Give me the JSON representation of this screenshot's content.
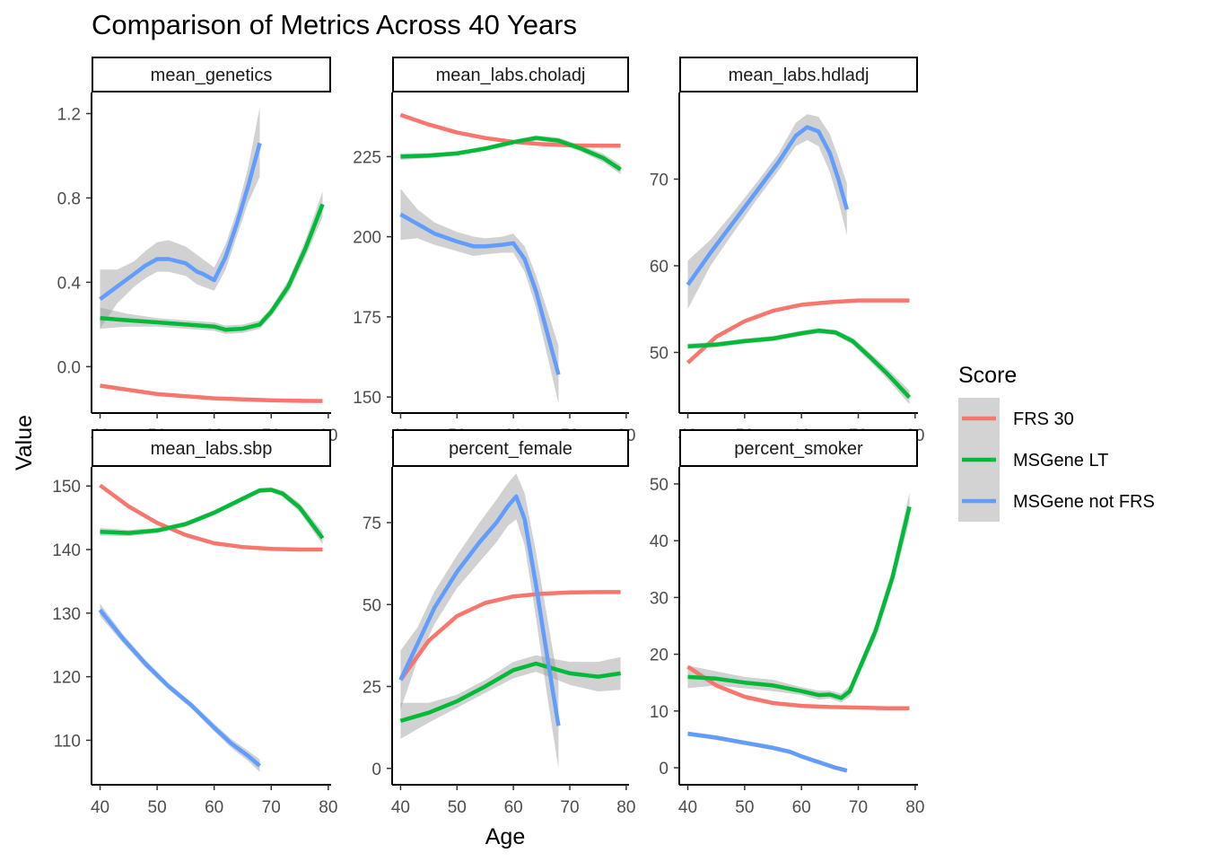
{
  "chart_data": {
    "type": "line",
    "title": "Comparison of Metrics Across 40 Years",
    "xlabel": "Age",
    "ylabel": "Value",
    "legend": {
      "title": "Score",
      "placement": "right",
      "entries": [
        {
          "name": "FRS 30",
          "color": "#F8766D"
        },
        {
          "name": "MSGene LT",
          "color": "#00BA38"
        },
        {
          "name": "MSGene not FRS",
          "color": "#619CFF"
        }
      ]
    },
    "xlim": [
      38.5,
      80.5
    ],
    "x_ticks": [
      40,
      50,
      60,
      70,
      80
    ],
    "grid": false,
    "panels": [
      {
        "strip": "mean_genetics",
        "ylim": [
          -0.22,
          1.3
        ],
        "y_ticks": [
          0.0,
          0.4,
          0.8,
          1.2
        ],
        "y_tick_labels": [
          "0.0",
          "0.4",
          "0.8",
          "1.2"
        ],
        "series": [
          {
            "name": "FRS 30",
            "x": [
              40,
              45,
              50,
              55,
              60,
              65,
              70,
              75,
              79
            ],
            "y": [
              -0.09,
              -0.11,
              -0.13,
              -0.14,
              -0.15,
              -0.155,
              -0.16,
              -0.162,
              -0.163
            ]
          },
          {
            "name": "MSGene LT",
            "x": [
              40,
              45,
              50,
              55,
              60,
              62,
              65,
              68,
              70,
              73,
              76,
              79
            ],
            "y": [
              0.23,
              0.22,
              0.21,
              0.2,
              0.19,
              0.175,
              0.18,
              0.2,
              0.26,
              0.38,
              0.56,
              0.77
            ],
            "lower": [
              0.18,
              0.19,
              0.19,
              0.18,
              0.17,
              0.155,
              0.16,
              0.18,
              0.24,
              0.35,
              0.52,
              0.71
            ],
            "upper": [
              0.28,
              0.25,
              0.23,
              0.22,
              0.21,
              0.195,
              0.2,
              0.22,
              0.28,
              0.41,
              0.6,
              0.83
            ]
          },
          {
            "name": "MSGene not FRS",
            "x": [
              40,
              43,
              46,
              48,
              50,
              52,
              55,
              57,
              58,
              60,
              62,
              64,
              66,
              68
            ],
            "y": [
              0.32,
              0.38,
              0.44,
              0.48,
              0.51,
              0.51,
              0.49,
              0.45,
              0.44,
              0.41,
              0.52,
              0.68,
              0.86,
              1.06
            ],
            "lower": [
              0.18,
              0.3,
              0.38,
              0.42,
              0.45,
              0.45,
              0.43,
              0.39,
              0.38,
              0.36,
              0.46,
              0.62,
              0.78,
              0.9
            ],
            "upper": [
              0.46,
              0.46,
              0.5,
              0.55,
              0.59,
              0.6,
              0.57,
              0.53,
              0.51,
              0.47,
              0.58,
              0.74,
              0.95,
              1.23
            ]
          }
        ]
      },
      {
        "strip": "mean_labs.choladj",
        "ylim": [
          145,
          245
        ],
        "y_ticks": [
          150,
          175,
          200,
          225
        ],
        "y_tick_labels": [
          "150",
          "175",
          "200",
          "225"
        ],
        "series": [
          {
            "name": "FRS 30",
            "x": [
              40,
              45,
              50,
              55,
              60,
              65,
              70,
              75,
              79
            ],
            "y": [
              238,
              235,
              232.5,
              230.8,
              229.6,
              228.9,
              228.5,
              228.4,
              228.4
            ]
          },
          {
            "name": "MSGene LT",
            "x": [
              40,
              45,
              50,
              55,
              60,
              64,
              68,
              72,
              76,
              79
            ],
            "y": [
              225,
              225.3,
              226,
              227.5,
              229.5,
              230.8,
              230.0,
              227.5,
              224.5,
              221
            ],
            "lower": [
              224,
              224.5,
              225.3,
              226.8,
              228.8,
              230.0,
              229.1,
              226.5,
              223.2,
              219.5
            ],
            "upper": [
              226,
              226.1,
              226.7,
              228.2,
              230.2,
              231.6,
              230.9,
              228.5,
              225.8,
              222.5
            ]
          },
          {
            "name": "MSGene not FRS",
            "x": [
              40,
              43,
              46,
              50,
              53,
              55,
              58,
              60,
              62,
              64,
              66,
              68
            ],
            "y": [
              207,
              204,
              201,
              198.5,
              197,
              197,
              197.5,
              198,
              193,
              183,
              170,
              157
            ],
            "lower": [
              199,
              199.5,
              197.5,
              195.5,
              194,
              194.5,
              195,
              195,
              189,
              178,
              163,
              148
            ],
            "upper": [
              215,
              208.5,
              204.5,
              201.5,
              200,
              199.5,
              200,
              201,
              197,
              188,
              177,
              166
            ]
          }
        ]
      },
      {
        "strip": "mean_labs.hdladj",
        "ylim": [
          43,
          80
        ],
        "y_ticks": [
          50,
          60,
          70
        ],
        "y_tick_labels": [
          "50",
          "60",
          "70"
        ],
        "series": [
          {
            "name": "FRS 30",
            "x": [
              40,
              45,
              50,
              55,
              60,
              65,
              70,
              75,
              79
            ],
            "y": [
              48.8,
              51.8,
              53.6,
              54.8,
              55.5,
              55.8,
              56.0,
              56.0,
              56.0
            ]
          },
          {
            "name": "MSGene LT",
            "x": [
              40,
              45,
              50,
              55,
              60,
              63,
              66,
              69,
              72,
              75,
              79
            ],
            "y": [
              50.7,
              50.9,
              51.3,
              51.6,
              52.2,
              52.5,
              52.3,
              51.3,
              49.5,
              47.6,
              44.8
            ],
            "lower": [
              50.4,
              50.6,
              51.0,
              51.3,
              51.9,
              52.2,
              52.0,
              50.9,
              49.0,
              47.0,
              44.0
            ],
            "upper": [
              51.0,
              51.2,
              51.6,
              51.9,
              52.5,
              52.8,
              52.6,
              51.7,
              50.0,
              48.2,
              45.6
            ]
          },
          {
            "name": "MSGene not FRS",
            "x": [
              40,
              44,
              48,
              52,
              56,
              59,
              61,
              63,
              65,
              66.5,
              68
            ],
            "y": [
              57.8,
              61.5,
              65.0,
              68.5,
              72.0,
              75.0,
              76.0,
              75.5,
              73.0,
              70.0,
              66.5
            ],
            "lower": [
              55.0,
              60.0,
              63.8,
              67.5,
              71.0,
              73.8,
              74.5,
              73.8,
              70.8,
              67.5,
              63.5
            ],
            "upper": [
              60.6,
              63.0,
              66.2,
              69.5,
              73.0,
              76.5,
              77.5,
              77.2,
              75.2,
              72.5,
              69.5
            ]
          }
        ]
      },
      {
        "strip": "mean_labs.sbp",
        "ylim": [
          103,
          153
        ],
        "y_ticks": [
          110,
          120,
          130,
          140,
          150
        ],
        "y_tick_labels": [
          "110",
          "120",
          "130",
          "140",
          "150"
        ],
        "series": [
          {
            "name": "FRS 30",
            "x": [
              40,
              45,
              50,
              55,
              60,
              65,
              70,
              75,
              79
            ],
            "y": [
              150.1,
              146.8,
              144.2,
              142.3,
              141.0,
              140.4,
              140.1,
              140.0,
              140.0
            ]
          },
          {
            "name": "MSGene LT",
            "x": [
              40,
              45,
              50,
              55,
              60,
              65,
              68,
              70,
              72,
              75,
              79
            ],
            "y": [
              142.8,
              142.6,
              143.0,
              144.0,
              145.8,
              148.0,
              149.3,
              149.4,
              148.8,
              146.6,
              141.8
            ],
            "lower": [
              142.2,
              142.1,
              142.6,
              143.6,
              145.4,
              147.6,
              148.9,
              149.0,
              148.3,
              145.9,
              140.8
            ],
            "upper": [
              143.4,
              143.1,
              143.4,
              144.4,
              146.2,
              148.4,
              149.7,
              149.8,
              149.3,
              147.3,
              142.8
            ]
          },
          {
            "name": "MSGene not FRS",
            "x": [
              40,
              44,
              48,
              52,
              56,
              60,
              63,
              66,
              68
            ],
            "y": [
              130.5,
              126.0,
              122.0,
              118.5,
              115.5,
              112.0,
              109.5,
              107.5,
              106.0
            ],
            "lower": [
              129.5,
              125.3,
              121.4,
              118.0,
              115.0,
              111.4,
              108.8,
              106.7,
              105.0
            ],
            "upper": [
              131.5,
              126.7,
              122.6,
              119.0,
              116.0,
              112.6,
              110.2,
              108.3,
              107.0
            ]
          }
        ]
      },
      {
        "strip": "percent_female",
        "ylim": [
          -5,
          92
        ],
        "y_ticks": [
          0,
          25,
          50,
          75
        ],
        "y_tick_labels": [
          "0",
          "25",
          "50",
          "75"
        ],
        "series": [
          {
            "name": "FRS 30",
            "x": [
              40,
              45,
              50,
              55,
              60,
              65,
              70,
              75,
              79
            ],
            "y": [
              27,
              39,
              46.5,
              50.5,
              52.5,
              53.3,
              53.7,
              53.8,
              53.8
            ]
          },
          {
            "name": "MSGene LT",
            "x": [
              40,
              45,
              50,
              55,
              60,
              64,
              67,
              70,
              75,
              79
            ],
            "y": [
              14.5,
              17.0,
              20.5,
              25.0,
              30.0,
              32.0,
              30.5,
              29.0,
              28.0,
              29.0
            ],
            "lower": [
              9.0,
              14.0,
              18.5,
              23.0,
              27.5,
              29.5,
              27.5,
              25.5,
              23.5,
              24.0
            ],
            "upper": [
              20.0,
              20.0,
              22.5,
              27.0,
              32.5,
              34.5,
              33.5,
              32.5,
              32.5,
              34.0
            ]
          },
          {
            "name": "MSGene not FRS",
            "x": [
              40,
              43,
              46,
              50,
              54,
              57,
              59,
              60.5,
              62,
              64,
              66,
              68
            ],
            "y": [
              27,
              38,
              49,
              60,
              69,
              75,
              80,
              83,
              76,
              56,
              34,
              13
            ],
            "lower": [
              18,
              33,
              44,
              55,
              63,
              69,
              74,
              76,
              68,
              46,
              22,
              0
            ],
            "upper": [
              36,
              43,
              54,
              65,
              75,
              82,
              87,
              90,
              84,
              66,
              46,
              26
            ]
          }
        ]
      },
      {
        "strip": "percent_smoker",
        "ylim": [
          -3,
          53
        ],
        "y_ticks": [
          0,
          10,
          20,
          30,
          40,
          50
        ],
        "y_tick_labels": [
          "0",
          "10",
          "20",
          "30",
          "40",
          "50"
        ],
        "series": [
          {
            "name": "FRS 30",
            "x": [
              40,
              45,
              50,
              55,
              60,
              65,
              70,
              75,
              79
            ],
            "y": [
              17.8,
              14.5,
              12.5,
              11.4,
              10.9,
              10.7,
              10.6,
              10.5,
              10.5
            ]
          },
          {
            "name": "MSGene LT",
            "x": [
              40,
              45,
              50,
              55,
              60,
              63,
              65,
              67,
              68.5,
              70,
              73,
              76,
              79
            ],
            "y": [
              16.0,
              15.7,
              15.0,
              14.5,
              13.5,
              12.8,
              12.9,
              12.3,
              13.5,
              17.0,
              24.0,
              33.5,
              46.0
            ],
            "lower": [
              14.0,
              14.5,
              14.0,
              13.5,
              12.8,
              12.0,
              12.2,
              11.5,
              12.5,
              16.0,
              22.8,
              32.0,
              43.5
            ],
            "upper": [
              18.0,
              17.0,
              16.0,
              15.5,
              14.2,
              13.6,
              13.6,
              13.1,
              14.5,
              18.0,
              25.2,
              35.0,
              48.5
            ]
          },
          {
            "name": "MSGene not FRS",
            "x": [
              40,
              45,
              50,
              55,
              58,
              60,
              63,
              66,
              68
            ],
            "y": [
              6.0,
              5.3,
              4.4,
              3.5,
              2.8,
              2.0,
              1.0,
              0.0,
              -0.5
            ],
            "lower": [
              5.6,
              4.9,
              4.0,
              3.1,
              2.4,
              1.6,
              0.6,
              -0.4,
              -0.9
            ],
            "upper": [
              6.4,
              5.7,
              4.8,
              3.9,
              3.2,
              2.4,
              1.4,
              0.4,
              -0.1
            ]
          }
        ]
      }
    ]
  }
}
